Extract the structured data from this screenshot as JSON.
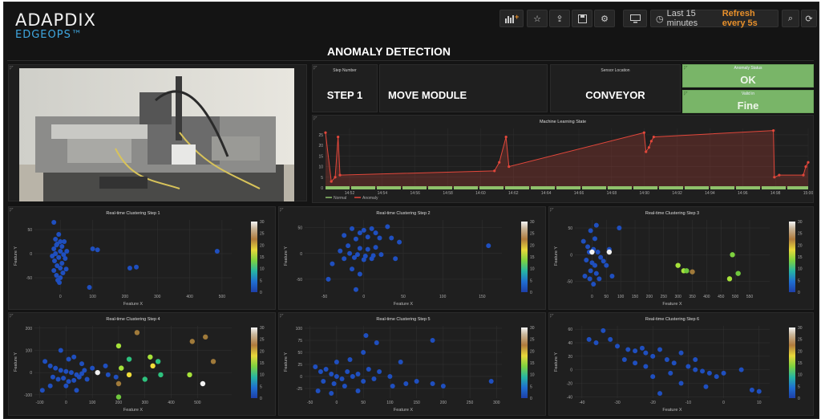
{
  "header": {
    "brand": "ADAPDIX",
    "subtitle": "EDGEOPS™",
    "time_range": "Last 15 minutes",
    "refresh": "Refresh every 5s",
    "toolbar_icons": [
      "add-panel-icon",
      "star-icon",
      "share-icon",
      "save-icon",
      "settings-icon",
      "monitor-icon",
      "clock-icon",
      "search-zoom-icon",
      "refresh-icon"
    ]
  },
  "dashboard_title": "ANOMALY DETECTION",
  "stats": {
    "step_number": {
      "label": "Step Number",
      "value": "STEP 1"
    },
    "module": {
      "value": "MOVE MODULE"
    },
    "sensor_location": {
      "label": "Sensor Location",
      "value": "CONVEYOR"
    },
    "anomaly_status": {
      "label": "Anomaly Status",
      "value": "OK"
    },
    "valid": {
      "label": "Valid in",
      "value": "Fine"
    }
  },
  "colors": {
    "normal": "#8fc16b",
    "anomaly": "#e2473b",
    "cluster": "#1f4fbf"
  },
  "chart_data": [
    {
      "type": "line",
      "title": "Machine Learning State",
      "x_ticks": [
        "14:52",
        "14:54",
        "14:56",
        "14:58",
        "14:60",
        "14:62",
        "14:64",
        "14:66",
        "14:68",
        "14:90",
        "14:92",
        "14:94",
        "14:96",
        "14:98",
        "15:00"
      ],
      "y_ticks": [
        0,
        5,
        10,
        15,
        20,
        25
      ],
      "ylim": [
        0,
        28
      ],
      "series": [
        {
          "name": "Normal",
          "points": [
            [
              0,
              0
            ],
            [
              100,
              0
            ]
          ]
        },
        {
          "name": "Anomaly",
          "points": [
            [
              0,
              26
            ],
            [
              1.2,
              3
            ],
            [
              2,
              5
            ],
            [
              2.6,
              24
            ],
            [
              3,
              6
            ],
            [
              35,
              8
            ],
            [
              36,
              12
            ],
            [
              37.4,
              24
            ],
            [
              38,
              10
            ],
            [
              66,
              26
            ],
            [
              66.4,
              17
            ],
            [
              67,
              19
            ],
            [
              67.5,
              22
            ],
            [
              68,
              24
            ],
            [
              92.8,
              27
            ],
            [
              93,
              5
            ],
            [
              94,
              6
            ],
            [
              99,
              6
            ],
            [
              99.5,
              10
            ],
            [
              100,
              12
            ]
          ]
        }
      ],
      "legend": [
        "Normal",
        "Anomaly"
      ]
    },
    {
      "type": "scatter",
      "title": "Real-time Clustering Step 1",
      "xlabel": "Feature X",
      "ylabel": "Feature Y",
      "xlim": [
        -80,
        530
      ],
      "ylim": [
        -80,
        70
      ],
      "x_ticks": [
        0,
        100,
        200,
        300,
        400,
        500
      ],
      "y_ticks": [
        -50,
        0,
        50
      ],
      "points": [
        [
          -20,
          65
        ],
        [
          -5,
          40
        ],
        [
          -15,
          30
        ],
        [
          0,
          25
        ],
        [
          -10,
          20
        ],
        [
          5,
          15
        ],
        [
          -20,
          10
        ],
        [
          0,
          5
        ],
        [
          -15,
          0
        ],
        [
          10,
          -2
        ],
        [
          -5,
          -8
        ],
        [
          -18,
          -15
        ],
        [
          5,
          -20
        ],
        [
          -10,
          -25
        ],
        [
          0,
          -30
        ],
        [
          -20,
          -35
        ],
        [
          8,
          -40
        ],
        [
          -12,
          -45
        ],
        [
          0,
          -50
        ],
        [
          -8,
          -55
        ],
        [
          15,
          -10
        ],
        [
          20,
          5
        ],
        [
          -25,
          -5
        ],
        [
          12,
          25
        ],
        [
          -3,
          -60
        ],
        [
          100,
          10
        ],
        [
          115,
          8
        ],
        [
          235,
          -28
        ],
        [
          215,
          -30
        ],
        [
          485,
          5
        ],
        [
          90,
          -70
        ],
        [
          18,
          -32
        ],
        [
          -12,
          18
        ]
      ],
      "colorbar_ticks": [
        0,
        5,
        10,
        15,
        20,
        25,
        30
      ]
    },
    {
      "type": "scatter",
      "title": "Real-time Clustering Step 2",
      "xlabel": "Feature X",
      "ylabel": "Feature Y",
      "xlim": [
        -75,
        175
      ],
      "ylim": [
        -75,
        65
      ],
      "x_ticks": [
        -50,
        0,
        50,
        100,
        150
      ],
      "y_ticks": [
        -50,
        0,
        50
      ],
      "points": [
        [
          -15,
          48
        ],
        [
          0,
          45
        ],
        [
          10,
          48
        ],
        [
          -5,
          40
        ],
        [
          15,
          40
        ],
        [
          -25,
          35
        ],
        [
          5,
          32
        ],
        [
          -10,
          28
        ],
        [
          20,
          30
        ],
        [
          -20,
          15
        ],
        [
          -5,
          10
        ],
        [
          5,
          8
        ],
        [
          15,
          12
        ],
        [
          -18,
          0
        ],
        [
          -8,
          -2
        ],
        [
          2,
          -5
        ],
        [
          12,
          -4
        ],
        [
          22,
          -2
        ],
        [
          -25,
          -10
        ],
        [
          -12,
          -8
        ],
        [
          0,
          -12
        ],
        [
          10,
          -10
        ],
        [
          -5,
          -40
        ],
        [
          -15,
          -30
        ],
        [
          35,
          30
        ],
        [
          30,
          52
        ],
        [
          45,
          22
        ],
        [
          -40,
          -20
        ],
        [
          -30,
          5
        ],
        [
          158,
          15
        ],
        [
          -45,
          -50
        ],
        [
          -10,
          -70
        ],
        [
          40,
          -10
        ]
      ],
      "colorbar_ticks": [
        0,
        5,
        10,
        15,
        20,
        25,
        30
      ]
    },
    {
      "type": "scatter",
      "title": "Real-time Clustering Step 3",
      "xlabel": "Feature X",
      "ylabel": "Feature Y",
      "xlim": [
        -60,
        620
      ],
      "ylim": [
        -70,
        65
      ],
      "x_ticks": [
        0,
        50,
        100,
        150,
        200,
        250,
        300,
        350,
        400,
        450,
        500,
        550
      ],
      "y_ticks": [
        -50,
        0,
        50
      ],
      "points": [
        [
          -5,
          45
        ],
        [
          10,
          30
        ],
        [
          -15,
          15
        ],
        [
          5,
          10
        ],
        [
          -10,
          5
        ],
        [
          -20,
          -10
        ],
        [
          0,
          -15
        ],
        [
          10,
          -20
        ],
        [
          -5,
          -30
        ],
        [
          15,
          -35
        ],
        [
          -8,
          -45
        ],
        [
          5,
          -55
        ],
        [
          20,
          5
        ],
        [
          30,
          -5
        ],
        [
          40,
          -12
        ],
        [
          -30,
          25
        ],
        [
          60,
          10
        ],
        [
          50,
          -20
        ],
        [
          25,
          -45
        ],
        [
          95,
          50
        ],
        [
          70,
          -40
        ],
        [
          -25,
          -40
        ],
        [
          15,
          55
        ]
      ],
      "highlight_points": [
        [
          0,
          5,
          "#f2f2f2"
        ],
        [
          60,
          5,
          "#f2f2f2"
        ],
        [
          300,
          -20,
          "#a6e23a"
        ],
        [
          320,
          -30,
          "#a6e23a"
        ],
        [
          330,
          -30,
          "#6fc73d"
        ],
        [
          350,
          -32,
          "#a07a3a"
        ],
        [
          490,
          0,
          "#7ed23f"
        ],
        [
          510,
          -35,
          "#6fc73d"
        ],
        [
          480,
          -45,
          "#a6e23a"
        ]
      ],
      "colorbar_ticks": [
        0,
        5,
        10,
        15,
        20,
        25,
        30
      ]
    },
    {
      "type": "scatter",
      "title": "Real-time Clustering Step 4",
      "xlabel": "Feature X",
      "ylabel": "Feature Y",
      "xlim": [
        -120,
        630
      ],
      "ylim": [
        -115,
        210
      ],
      "x_ticks": [
        -100,
        0,
        100,
        200,
        300,
        400,
        500
      ],
      "y_ticks": [
        -100,
        0,
        100,
        200
      ],
      "points": [
        [
          -80,
          50
        ],
        [
          -60,
          30
        ],
        [
          -40,
          20
        ],
        [
          -20,
          10
        ],
        [
          0,
          5
        ],
        [
          20,
          0
        ],
        [
          40,
          -10
        ],
        [
          60,
          -5
        ],
        [
          -50,
          -20
        ],
        [
          -30,
          -30
        ],
        [
          -10,
          -25
        ],
        [
          10,
          -40
        ],
        [
          30,
          -35
        ],
        [
          50,
          -20
        ],
        [
          70,
          10
        ],
        [
          80,
          -30
        ],
        [
          100,
          20
        ],
        [
          -20,
          100
        ],
        [
          30,
          70
        ],
        [
          -60,
          -60
        ],
        [
          10,
          60
        ],
        [
          150,
          30
        ],
        [
          160,
          -10
        ],
        [
          190,
          -20
        ],
        [
          60,
          40
        ],
        [
          -90,
          -80
        ],
        [
          0,
          -60
        ],
        [
          40,
          -80
        ]
      ],
      "highlight_points": [
        [
          270,
          180,
          "#a07a3a"
        ],
        [
          200,
          120,
          "#a6e23a"
        ],
        [
          240,
          60,
          "#2ec27e"
        ],
        [
          320,
          70,
          "#a6e23a"
        ],
        [
          350,
          50,
          "#2ec27e"
        ],
        [
          330,
          30,
          "#f1dd39"
        ],
        [
          210,
          20,
          "#a6e23a"
        ],
        [
          240,
          -10,
          "#f1dd39"
        ],
        [
          360,
          -10,
          "#2ec27e"
        ],
        [
          300,
          -30,
          "#2ec27e"
        ],
        [
          200,
          -50,
          "#a07a3a"
        ],
        [
          120,
          0,
          "#f2f2f2"
        ],
        [
          480,
          140,
          "#a07a3a"
        ],
        [
          530,
          160,
          "#a07a3a"
        ],
        [
          560,
          50,
          "#a07a3a"
        ],
        [
          470,
          -10,
          "#a6e23a"
        ],
        [
          520,
          -50,
          "#f2f2f2"
        ],
        [
          200,
          -110,
          "#6fc73d"
        ]
      ],
      "colorbar_ticks": [
        0,
        5,
        10,
        15,
        20,
        25,
        30
      ]
    },
    {
      "type": "scatter",
      "title": "Real-time Clustering Step 5",
      "xlabel": "Feature X",
      "ylabel": "Feature Y",
      "xlim": [
        -60,
        310
      ],
      "ylim": [
        -45,
        105
      ],
      "x_ticks": [
        -50,
        0,
        50,
        100,
        150,
        200,
        250,
        300
      ],
      "y_ticks": [
        -25,
        0,
        25,
        50,
        75,
        100
      ],
      "points": [
        [
          -40,
          20
        ],
        [
          -30,
          10
        ],
        [
          -20,
          15
        ],
        [
          -10,
          5
        ],
        [
          0,
          0
        ],
        [
          10,
          -5
        ],
        [
          20,
          10
        ],
        [
          -25,
          -10
        ],
        [
          -5,
          -15
        ],
        [
          15,
          -20
        ],
        [
          30,
          0
        ],
        [
          40,
          5
        ],
        [
          50,
          -10
        ],
        [
          60,
          15
        ],
        [
          70,
          -5
        ],
        [
          80,
          10
        ],
        [
          100,
          0
        ],
        [
          -35,
          -30
        ],
        [
          0,
          30
        ],
        [
          25,
          35
        ],
        [
          50,
          50
        ],
        [
          55,
          85
        ],
        [
          75,
          70
        ],
        [
          105,
          -20
        ],
        [
          130,
          -15
        ],
        [
          150,
          -10
        ],
        [
          180,
          -15
        ],
        [
          200,
          -20
        ],
        [
          290,
          -10
        ],
        [
          -10,
          -35
        ],
        [
          40,
          -30
        ],
        [
          180,
          75
        ],
        [
          120,
          30
        ]
      ],
      "colorbar_ticks": [
        0,
        5,
        10,
        15,
        20,
        25,
        30
      ]
    },
    {
      "type": "scatter",
      "title": "Real-time Clustering Step 6",
      "xlabel": "Feature X",
      "ylabel": "Feature Y",
      "xlim": [
        -42,
        13
      ],
      "ylim": [
        -42,
        65
      ],
      "x_ticks": [
        -40,
        -30,
        -20,
        -10,
        0,
        10
      ],
      "y_ticks": [
        -40,
        -20,
        0,
        20,
        40,
        60
      ],
      "points": [
        [
          -38,
          45
        ],
        [
          -36,
          40
        ],
        [
          -34,
          58
        ],
        [
          -32,
          45
        ],
        [
          -27,
          30
        ],
        [
          -25,
          28
        ],
        [
          -23,
          32
        ],
        [
          -22,
          25
        ],
        [
          -20,
          20
        ],
        [
          -18,
          30
        ],
        [
          -16,
          15
        ],
        [
          -14,
          10
        ],
        [
          -12,
          25
        ],
        [
          -10,
          5
        ],
        [
          -8,
          0
        ],
        [
          -6,
          -2
        ],
        [
          -4,
          -5
        ],
        [
          -2,
          -10
        ],
        [
          -15,
          -5
        ],
        [
          -20,
          -10
        ],
        [
          -22,
          5
        ],
        [
          -25,
          10
        ],
        [
          -28,
          15
        ],
        [
          -12,
          -20
        ],
        [
          -5,
          -25
        ],
        [
          0,
          -5
        ],
        [
          5,
          0
        ],
        [
          8,
          -30
        ],
        [
          10,
          -32
        ],
        [
          -18,
          -35
        ],
        [
          -30,
          35
        ],
        [
          -8,
          15
        ]
      ],
      "colorbar_ticks": [
        0,
        5,
        10,
        15,
        20,
        25,
        30
      ]
    }
  ]
}
